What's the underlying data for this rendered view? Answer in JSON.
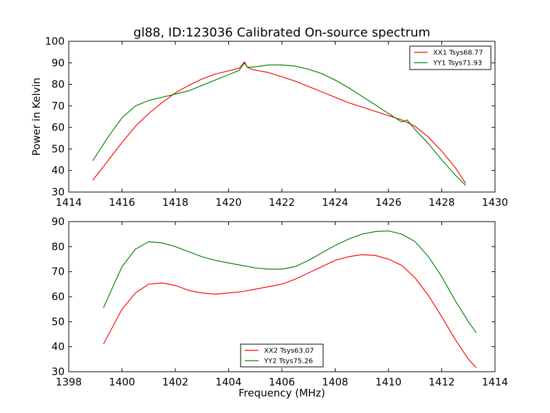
{
  "title": "gl88, ID:123036 Calibrated On-source spectrum",
  "colors": {
    "xx": "#ff0000",
    "yy": "#008000"
  },
  "chart_data": [
    {
      "type": "line",
      "ylabel": "Power in Kelvin",
      "xlabel": "",
      "xlim": [
        1414,
        1430
      ],
      "ylim": [
        30,
        100
      ],
      "xticks": [
        1414,
        1416,
        1418,
        1420,
        1422,
        1424,
        1426,
        1428,
        1430
      ],
      "yticks": [
        30,
        40,
        50,
        60,
        70,
        80,
        90,
        100
      ],
      "legend_position": "top-right",
      "series": [
        {
          "name": "XX1 Tsys68.77",
          "color": "#ff0000",
          "x": [
            1414.9,
            1415.5,
            1416.0,
            1416.5,
            1417.0,
            1417.5,
            1418.0,
            1418.5,
            1419.0,
            1419.5,
            1420.0,
            1420.4,
            1420.6,
            1420.7,
            1420.9,
            1421.2,
            1421.5,
            1422.0,
            1422.5,
            1423.0,
            1423.5,
            1424.0,
            1424.5,
            1425.0,
            1425.5,
            1426.0,
            1426.5,
            1427.0,
            1427.5,
            1428.0,
            1428.5,
            1428.9
          ],
          "y": [
            35.5,
            45,
            53,
            60.5,
            66.5,
            71.5,
            76,
            79.5,
            82.5,
            84.8,
            86.3,
            87.5,
            90.5,
            88,
            86.8,
            86.2,
            85.5,
            83.5,
            81.5,
            79,
            76.5,
            74,
            71.5,
            69.5,
            67.5,
            65.5,
            63.5,
            60.5,
            55.5,
            49,
            41.5,
            34
          ]
        },
        {
          "name": "YY1 Tsys71.93",
          "color": "#008000",
          "x": [
            1414.9,
            1415.5,
            1416.0,
            1416.5,
            1417.0,
            1417.5,
            1418.0,
            1418.5,
            1419.0,
            1419.5,
            1420.0,
            1420.4,
            1420.6,
            1420.7,
            1420.9,
            1421.2,
            1421.5,
            1422.0,
            1422.5,
            1423.0,
            1423.5,
            1424.0,
            1424.5,
            1425.0,
            1425.5,
            1426.0,
            1426.5,
            1426.7,
            1427.0,
            1427.5,
            1428.0,
            1428.5,
            1428.9
          ],
          "y": [
            44.5,
            56,
            64.5,
            70,
            72.5,
            74,
            75.5,
            77,
            79.5,
            82,
            84.5,
            86.5,
            90,
            88,
            88,
            88.5,
            89,
            89,
            88.5,
            87,
            85,
            82,
            78.5,
            74.5,
            70.5,
            66.5,
            62.5,
            63.5,
            59,
            52.5,
            45,
            38,
            33
          ]
        }
      ]
    },
    {
      "type": "line",
      "ylabel": "",
      "xlabel": "Frequency (MHz)",
      "xlim": [
        1398,
        1414
      ],
      "ylim": [
        30,
        90
      ],
      "xticks": [
        1398,
        1400,
        1402,
        1404,
        1406,
        1408,
        1410,
        1412,
        1414
      ],
      "yticks": [
        30,
        40,
        50,
        60,
        70,
        80,
        90
      ],
      "legend_position": "bottom-center",
      "series": [
        {
          "name": "XX2 Tsys63.07",
          "color": "#ff0000",
          "x": [
            1399.3,
            1399.7,
            1400.0,
            1400.5,
            1401.0,
            1401.5,
            1402.0,
            1402.5,
            1403.0,
            1403.5,
            1404.0,
            1404.5,
            1405.0,
            1405.5,
            1406.0,
            1406.5,
            1407.0,
            1407.5,
            1408.0,
            1408.5,
            1409.0,
            1409.5,
            1410.0,
            1410.5,
            1411.0,
            1411.5,
            1412.0,
            1412.5,
            1413.0,
            1413.3
          ],
          "y": [
            41,
            49,
            55,
            61.5,
            65,
            65.5,
            64.5,
            62.5,
            61.5,
            61,
            61.5,
            62,
            63,
            64,
            65,
            67,
            69.5,
            72,
            74.5,
            76,
            76.8,
            76.5,
            75,
            72.5,
            67.5,
            60.5,
            52,
            43,
            35,
            31.5
          ]
        },
        {
          "name": "YY2 Tsys75.26",
          "color": "#008000",
          "x": [
            1399.3,
            1399.7,
            1400.0,
            1400.5,
            1401.0,
            1401.5,
            1402.0,
            1402.5,
            1403.0,
            1403.5,
            1404.0,
            1404.5,
            1405.0,
            1405.5,
            1406.0,
            1406.5,
            1407.0,
            1407.5,
            1408.0,
            1408.5,
            1409.0,
            1409.5,
            1410.0,
            1410.5,
            1411.0,
            1411.5,
            1412.0,
            1412.5,
            1413.0,
            1413.3
          ],
          "y": [
            55.5,
            65,
            72,
            79,
            82,
            81.5,
            80,
            78,
            76,
            74.5,
            73.5,
            72.5,
            71.5,
            71,
            71,
            72,
            74.5,
            77.5,
            80.5,
            83,
            85,
            86,
            86.3,
            85,
            82,
            76,
            68,
            58.5,
            50,
            45.5
          ]
        }
      ]
    }
  ]
}
